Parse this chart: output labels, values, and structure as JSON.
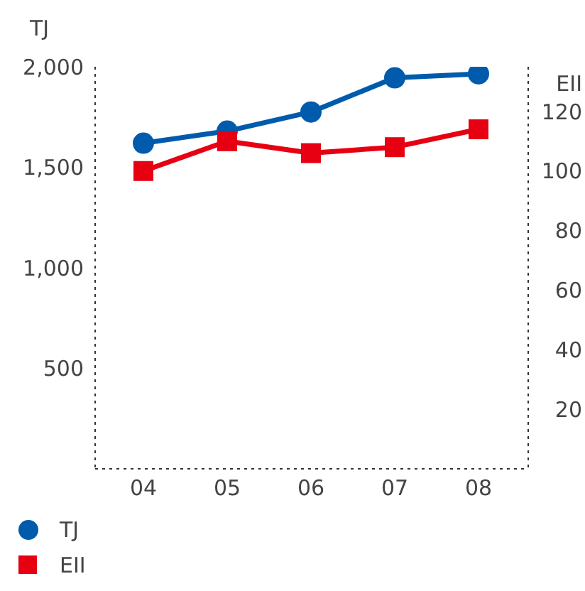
{
  "chart_data": {
    "type": "line",
    "ylabel": "TJ",
    "y2label": "EII",
    "categories": [
      "04",
      "05",
      "06",
      "07",
      "08"
    ],
    "series": [
      {
        "name": "TJ",
        "color": "#005bac",
        "marker": "circle",
        "values": [
          1620,
          1680,
          1775,
          1945,
          1965
        ]
      },
      {
        "name": "EII",
        "color": "#e60012",
        "marker": "square",
        "axis": "y2",
        "values": [
          100,
          110,
          106,
          108,
          114
        ]
      }
    ],
    "ylim": [
      0,
      2000
    ],
    "yticks": [
      {
        "value": 500,
        "label": "500"
      },
      {
        "value": 1000,
        "label": "1,000"
      },
      {
        "value": 1500,
        "label": "1,500"
      },
      {
        "value": 2000,
        "label": "2,000"
      }
    ],
    "y2lim": [
      0,
      135
    ],
    "y2ticks": [
      20,
      40,
      60,
      80,
      100,
      120
    ],
    "grid": false,
    "legend": "bottom left",
    "line_style": "solid"
  }
}
